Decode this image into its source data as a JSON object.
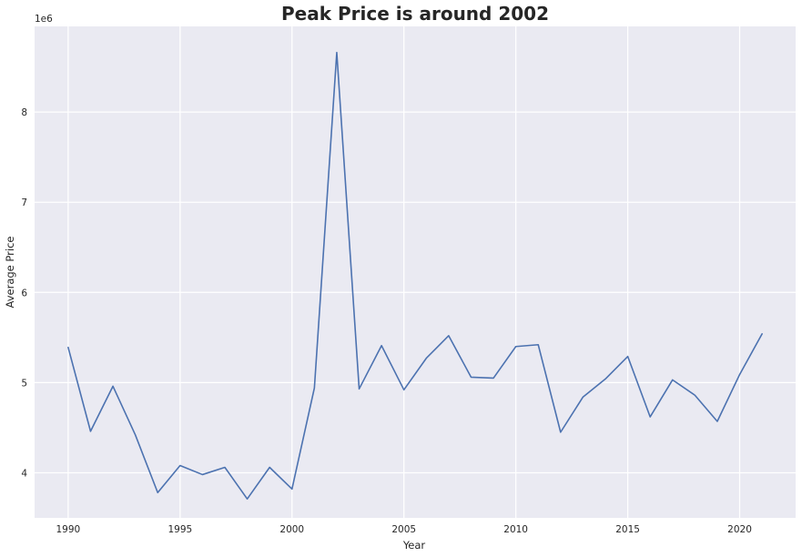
{
  "chart_data": {
    "type": "line",
    "title": "Peak Price is around 2002",
    "xlabel": "Year",
    "ylabel": "Average Price",
    "y_offset_label": "1e6",
    "y_scale_factor": 1000000,
    "xlim": [
      1988.5,
      2022.5
    ],
    "ylim": [
      3500000,
      8950000
    ],
    "x_ticks": [
      1990,
      1995,
      2000,
      2005,
      2010,
      2015,
      2020
    ],
    "x_tick_labels": [
      "1990",
      "1995",
      "2000",
      "2005",
      "2010",
      "2015",
      "2020"
    ],
    "y_ticks": [
      4000000,
      5000000,
      6000000,
      7000000,
      8000000
    ],
    "y_tick_labels": [
      "4",
      "5",
      "6",
      "7",
      "8"
    ],
    "grid": true,
    "colors": {
      "background": "#eaeaf2",
      "grid": "#ffffff",
      "line": "#4c72b0"
    },
    "series": [
      {
        "x": [
          1990,
          1991,
          1992,
          1993,
          1994,
          1995,
          1996,
          1997,
          1998,
          1999,
          2000,
          2001,
          2002,
          2003,
          2004,
          2005,
          2006,
          2007,
          2008,
          2009,
          2010,
          2011,
          2012,
          2013,
          2014,
          2015,
          2016,
          2017,
          2018,
          2019,
          2020,
          2021
        ],
        "values": [
          5390000,
          4460000,
          4960000,
          4420000,
          3780000,
          4080000,
          3980000,
          4060000,
          3710000,
          4060000,
          3820000,
          4940000,
          8660000,
          4930000,
          5410000,
          4920000,
          5270000,
          5520000,
          5060000,
          5050000,
          5400000,
          5420000,
          4450000,
          4840000,
          5040000,
          5290000,
          4620000,
          5030000,
          4860000,
          4570000,
          5090000,
          5540000
        ]
      }
    ]
  }
}
